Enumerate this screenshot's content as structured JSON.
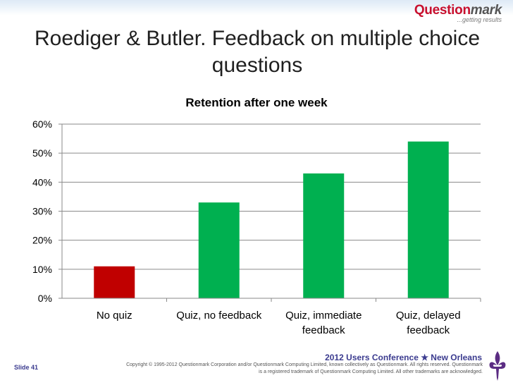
{
  "header": {
    "logo_text": "Question",
    "logo_text_italic": "mark",
    "logo_tagline": "...getting results"
  },
  "slide": {
    "title": "Roediger & Butler. Feedback on multiple choice questions"
  },
  "chart_data": {
    "type": "bar",
    "title": "Retention after one week",
    "categories": [
      "No quiz",
      "Quiz, no feedback",
      "Quiz, immediate feedback",
      "Quiz, delayed feedback"
    ],
    "category_lines": [
      [
        "No quiz"
      ],
      [
        "Quiz, no feedback"
      ],
      [
        "Quiz, immediate",
        "feedback"
      ],
      [
        "Quiz, delayed",
        "feedback"
      ]
    ],
    "values": [
      0.11,
      0.33,
      0.43,
      0.54
    ],
    "bar_colors": [
      "#c00000",
      "#00b050",
      "#00b050",
      "#00b050"
    ],
    "ylim": [
      0,
      0.6
    ],
    "yticks": [
      0,
      0.1,
      0.2,
      0.3,
      0.4,
      0.5,
      0.6
    ],
    "ytick_labels": [
      "0%",
      "10%",
      "20%",
      "30%",
      "40%",
      "50%",
      "60%"
    ],
    "xlabel": "",
    "ylabel": "",
    "grid": true,
    "legend": "none"
  },
  "footer": {
    "conference": "2012 Users Conference ★ New Orleans",
    "copyright_line1": "Copyright © 1995-2012 Questionmark Corporation and/or Questionmark Computing Limited, known collectively as Questionmark. All rights reserved. Questionmark",
    "copyright_line2": "is a registered trademark of Questionmark Computing Limited. All other trademarks are acknowledged.",
    "slide_number": "Slide 41"
  }
}
